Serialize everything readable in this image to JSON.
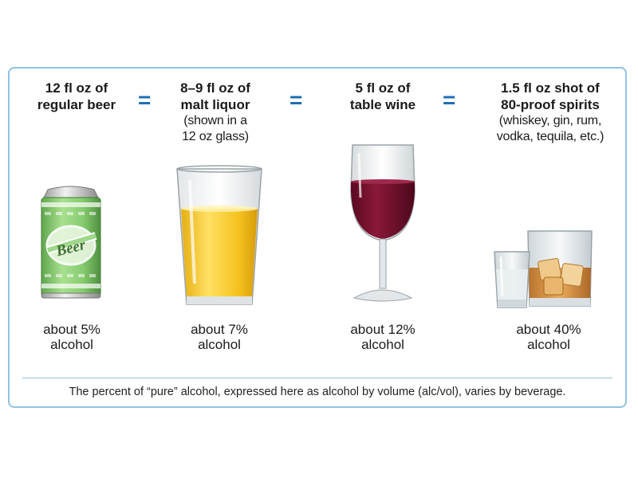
{
  "columns": [
    {
      "heading": [
        "12 fl oz of",
        "regular beer"
      ],
      "note": [],
      "percent": [
        "about 5%",
        "alcohol"
      ],
      "icon": "beer-can",
      "can_label": "Beer"
    },
    {
      "heading": [
        "8–9 fl oz of",
        "malt liquor"
      ],
      "note": [
        "(shown in a",
        "12 oz glass)"
      ],
      "percent": [
        "about 7%",
        "alcohol"
      ],
      "icon": "pint-glass"
    },
    {
      "heading": [
        "5 fl oz of",
        "table wine"
      ],
      "note": [],
      "percent": [
        "about 12%",
        "alcohol"
      ],
      "icon": "wine-glass"
    },
    {
      "heading": [
        "1.5 fl oz shot of",
        "80-proof spirits"
      ],
      "note": [
        "(whiskey, gin, rum,",
        "vodka, tequila, etc.)"
      ],
      "percent": [
        "about 40%",
        "alcohol"
      ],
      "icon": "spirits-glasses"
    }
  ],
  "equals_sign": "=",
  "footnote": "The percent of “pure” alcohol, expressed here as alcohol by volume (alc/vol), varies by beverage.",
  "colors": {
    "frame": "#8fc3e3",
    "equals": "#1f6fb2",
    "can": "#8fd07a",
    "malt_liquor": "#f2c01e",
    "wine": "#7a1030",
    "whiskey": "#d08a2e"
  }
}
